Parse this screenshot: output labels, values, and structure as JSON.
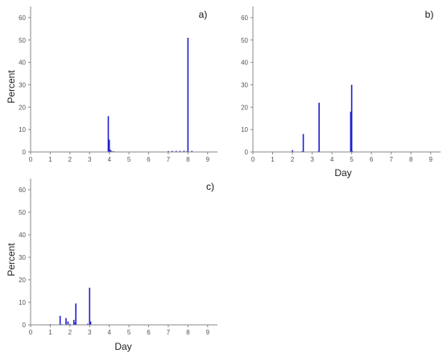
{
  "colors": {
    "bar": "#1f1fd1",
    "axis": "#888888",
    "text": "#333333"
  },
  "chart_data": [
    {
      "type": "bar",
      "panel_label": "a)",
      "xlabel": "",
      "ylabel": "Percent",
      "xlim": [
        0,
        9.5
      ],
      "ylim": [
        0,
        65
      ],
      "xticks": [
        0,
        1,
        2,
        3,
        4,
        5,
        6,
        7,
        8,
        9
      ],
      "yticks": [
        0,
        10,
        20,
        30,
        40,
        50,
        60
      ],
      "bar_width": 0.06,
      "grid": false,
      "x": [
        2.0,
        3.0,
        3.95,
        4.0,
        4.05,
        4.1,
        4.2,
        4.3,
        7.0,
        7.2,
        7.4,
        7.6,
        7.8,
        7.95,
        8.0,
        8.2
      ],
      "values": [
        0.2,
        0.1,
        16.0,
        5.5,
        1.0,
        0.5,
        0.4,
        0.2,
        0.4,
        0.5,
        0.5,
        0.5,
        0.6,
        0.3,
        51.0,
        0.5
      ]
    },
    {
      "type": "bar",
      "panel_label": "b)",
      "xlabel": "Day",
      "ylabel": "",
      "xlim": [
        0,
        9.5
      ],
      "ylim": [
        0,
        65
      ],
      "xticks": [
        0,
        1,
        2,
        3,
        4,
        5,
        6,
        7,
        8,
        9
      ],
      "yticks": [
        0,
        10,
        20,
        30,
        40,
        50,
        60
      ],
      "bar_width": 0.06,
      "grid": false,
      "x": [
        1.5,
        2.0,
        2.5,
        2.55,
        3.3,
        3.35,
        4.95,
        5.0,
        5.05
      ],
      "values": [
        0.2,
        0.8,
        0.4,
        8.0,
        0.3,
        22.0,
        18.0,
        30.0,
        0.3
      ]
    },
    {
      "type": "bar",
      "panel_label": "c)",
      "xlabel": "Day",
      "ylabel": "Percent",
      "xlim": [
        0,
        9.5
      ],
      "ylim": [
        0,
        65
      ],
      "xticks": [
        0,
        1,
        2,
        3,
        4,
        5,
        6,
        7,
        8,
        9
      ],
      "yticks": [
        0,
        10,
        20,
        30,
        40,
        50,
        60
      ],
      "bar_width": 0.06,
      "grid": false,
      "x": [
        0.5,
        1.0,
        1.5,
        1.6,
        1.8,
        1.9,
        2.0,
        2.2,
        2.25,
        2.3,
        2.9,
        3.0,
        3.05
      ],
      "values": [
        0.2,
        0.3,
        4.0,
        0.3,
        3.0,
        1.5,
        0.4,
        2.2,
        0.8,
        9.5,
        0.5,
        16.5,
        1.5
      ]
    }
  ]
}
